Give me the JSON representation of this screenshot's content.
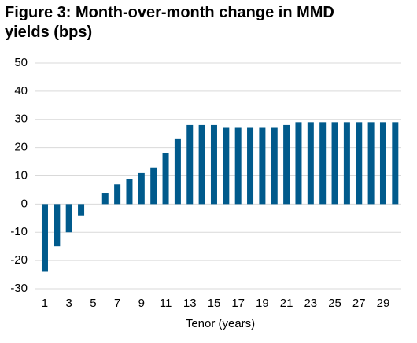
{
  "chart_data": {
    "type": "bar",
    "title": "Figure 3: Month-over-month change in MMD yields (bps)",
    "x_label": "Tenor (years)",
    "categories": [
      "1",
      null,
      "3",
      null,
      "5",
      null,
      "7",
      null,
      "9",
      null,
      "11",
      null,
      "13",
      null,
      "15",
      null,
      "17",
      null,
      "19",
      null,
      "21",
      null,
      "23",
      null,
      "25",
      null,
      "27",
      null,
      "29",
      null
    ],
    "values": [
      -24,
      -15,
      -10,
      -4,
      0,
      4,
      7,
      9,
      11,
      13,
      18,
      23,
      28,
      28,
      28,
      27,
      27,
      27,
      27,
      27,
      28,
      29,
      29,
      29,
      29,
      29,
      29,
      29,
      29,
      29
    ],
    "color": "#005a8c",
    "ylim": [
      -30,
      50
    ],
    "yticks": [
      -30,
      -20,
      -10,
      0,
      10,
      20,
      30,
      40,
      50
    ],
    "grid": true
  }
}
